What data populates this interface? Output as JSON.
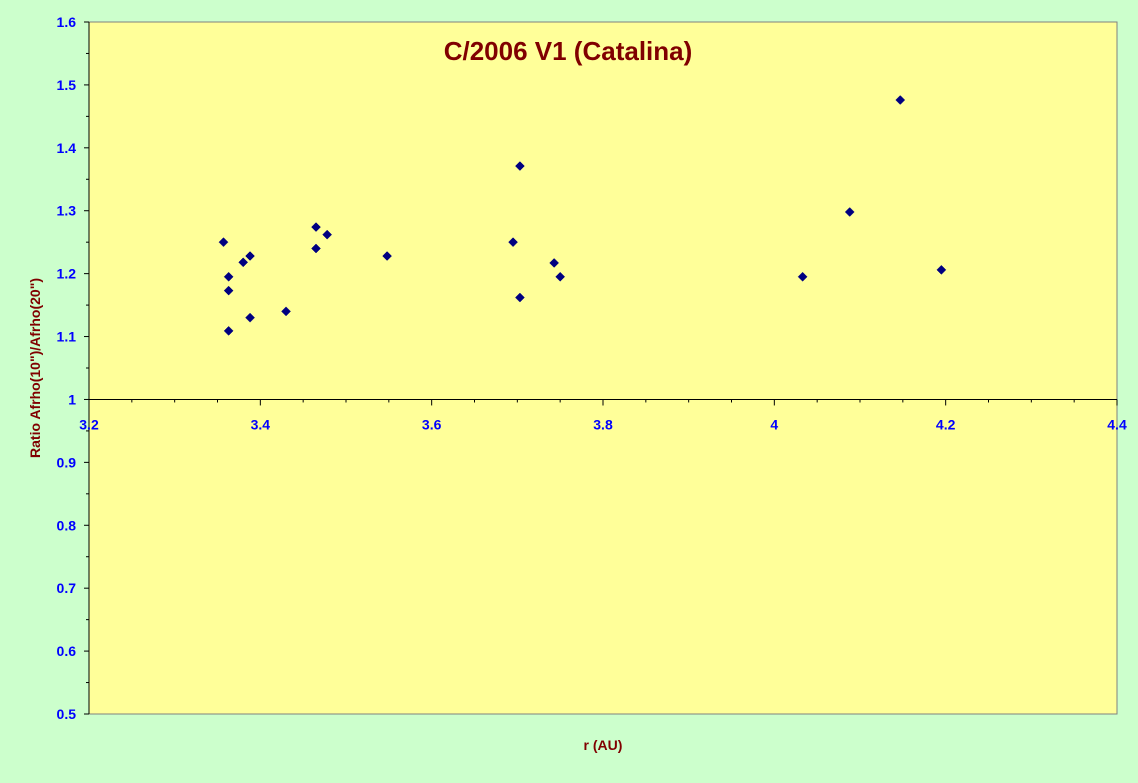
{
  "chart_data": {
    "type": "scatter",
    "title": "C/2006 V1 (Catalina)",
    "xlabel": "r (AU)",
    "ylabel": "Ratio Afrho(10\")/Afrho(20\")",
    "xlim": [
      3.2,
      4.4
    ],
    "ylim": [
      0.5,
      1.6
    ],
    "x_ticks": [
      "3.2",
      "3.4",
      "3.6",
      "3.8",
      "4",
      "4.2",
      "4.4"
    ],
    "y_ticks": [
      "0.5",
      "0.6",
      "0.7",
      "0.8",
      "0.9",
      "1",
      "1.1",
      "1.2",
      "1.3",
      "1.4",
      "1.5",
      "1.6"
    ],
    "x_axis_crosses_y": 1.0,
    "grid": false,
    "legend": "none",
    "colors": {
      "background": "#ccffcc",
      "plot_area": "#ffff99",
      "title": "#800000",
      "axis_label": "#800000",
      "tick_label": "#0000ff",
      "marker": "#000080"
    },
    "series": [
      {
        "marker": "diamond",
        "points": [
          {
            "x": 3.357,
            "y": 1.25
          },
          {
            "x": 3.363,
            "y": 1.195
          },
          {
            "x": 3.363,
            "y": 1.173
          },
          {
            "x": 3.363,
            "y": 1.109
          },
          {
            "x": 3.38,
            "y": 1.218
          },
          {
            "x": 3.388,
            "y": 1.228
          },
          {
            "x": 3.388,
            "y": 1.13
          },
          {
            "x": 3.43,
            "y": 1.14
          },
          {
            "x": 3.465,
            "y": 1.274
          },
          {
            "x": 3.465,
            "y": 1.24
          },
          {
            "x": 3.478,
            "y": 1.262
          },
          {
            "x": 3.548,
            "y": 1.228
          },
          {
            "x": 3.695,
            "y": 1.25
          },
          {
            "x": 3.703,
            "y": 1.371
          },
          {
            "x": 3.703,
            "y": 1.162
          },
          {
            "x": 3.743,
            "y": 1.217
          },
          {
            "x": 3.75,
            "y": 1.195
          },
          {
            "x": 4.033,
            "y": 1.195
          },
          {
            "x": 4.088,
            "y": 1.298
          },
          {
            "x": 4.147,
            "y": 1.476
          },
          {
            "x": 4.195,
            "y": 1.206
          }
        ]
      }
    ]
  }
}
